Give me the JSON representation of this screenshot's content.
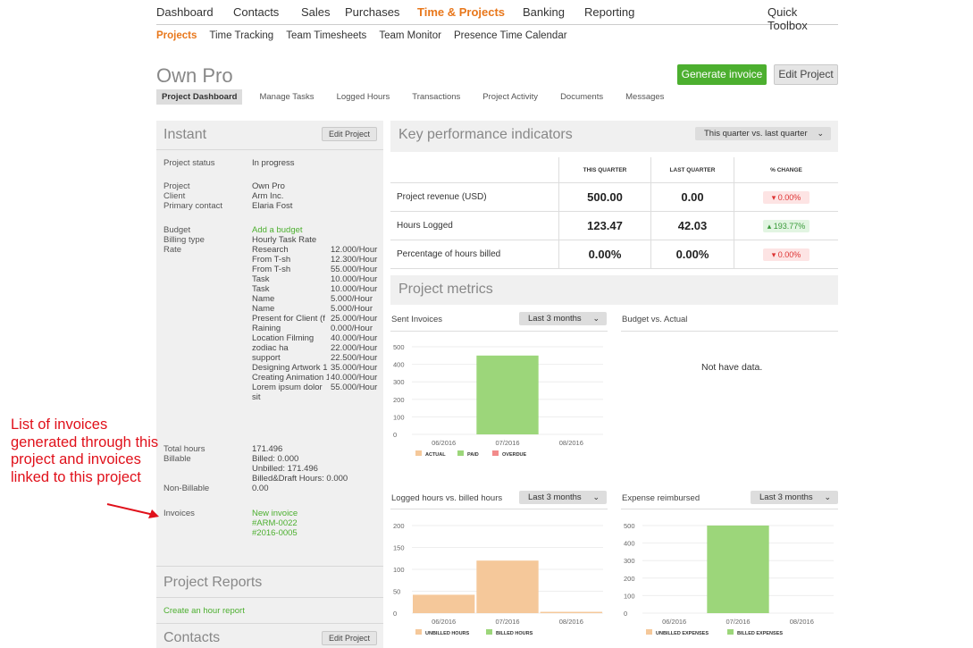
{
  "top_nav": [
    "Dashboard",
    "Contacts",
    "Sales",
    "Purchases",
    "Time & Projects",
    "Banking",
    "Reporting"
  ],
  "quick_toolbox": "Quick Toolbox",
  "sub_nav": [
    "Projects",
    "Time Tracking",
    "Team Timesheets",
    "Team Monitor",
    "Presence Time Calendar"
  ],
  "project_name": "Own Pro",
  "generate_invoice": "Generate invoice",
  "edit_project": "Edit Project",
  "tabs": [
    "Project Dashboard",
    "Manage Tasks",
    "Logged Hours",
    "Transactions",
    "Project Activity",
    "Documents",
    "Messages"
  ],
  "instant": {
    "title": "Instant",
    "edit": "Edit Project",
    "status_label": "Project status",
    "status": "In progress",
    "project_label": "Project",
    "project": "Own Pro",
    "client_label": "Client",
    "client": "Arm Inc.",
    "contact_label": "Primary contact",
    "contact": "Elaria Fost",
    "budget_label": "Budget",
    "budget": "Add a budget",
    "billing_label": "Billing type",
    "billing": "Hourly Task Rate",
    "rate_label": "Rate",
    "rates": [
      {
        "name": "Research",
        "rate": "12.000/Hour"
      },
      {
        "name": "From T-sh",
        "rate": "12.300/Hour"
      },
      {
        "name": "From T-sh",
        "rate": "55.000/Hour"
      },
      {
        "name": "Task",
        "rate": "10.000/Hour"
      },
      {
        "name": "Task",
        "rate": "10.000/Hour"
      },
      {
        "name": "Name",
        "rate": "5.000/Hour"
      },
      {
        "name": "Name",
        "rate": "5.000/Hour"
      },
      {
        "name": "Present for Client (f",
        "rate": "25.000/Hour"
      },
      {
        "name": "Raining",
        "rate": "0.000/Hour"
      },
      {
        "name": "Location Filming",
        "rate": "40.000/Hour"
      },
      {
        "name": "zodiac ha",
        "rate": "22.000/Hour"
      },
      {
        "name": "support",
        "rate": "22.500/Hour"
      },
      {
        "name": "Designing Artwork 1",
        "rate": "35.000/Hour"
      },
      {
        "name": "Creating Animation 1",
        "rate": "40.000/Hour"
      },
      {
        "name": "Lorem ipsum dolor",
        "rate": "55.000/Hour"
      },
      {
        "name": "sit",
        "rate": ""
      }
    ],
    "total_hours_label": "Total hours",
    "total_hours": "171.496",
    "billable_label": "Billable",
    "billed": "Billed: 0.000",
    "unbilled": "Unbilled: 171.496",
    "billed_draft": "Billed&Draft Hours: 0.000",
    "non_billable_label": "Non-Billable",
    "non_billable": "0.00",
    "invoices_label": "Invoices",
    "new_invoice": "New invoice",
    "invoices": [
      "#ARM-0022",
      "#2016-0005"
    ]
  },
  "project_reports": {
    "title": "Project Reports",
    "link": "Create an hour report"
  },
  "contacts": {
    "title": "Contacts",
    "edit": "Edit Project"
  },
  "kpi": {
    "title": "Key performance indicators",
    "period": "This quarter vs. last quarter",
    "headers": [
      "This quarter",
      "Last quarter",
      "% Change"
    ],
    "rows": [
      {
        "label": "Project revenue (USD)",
        "this": "500.00",
        "last": "0.00",
        "change": "0.00%",
        "dir": "down"
      },
      {
        "label": "Hours Logged",
        "this": "123.47",
        "last": "42.03",
        "change": "193.77%",
        "dir": "up"
      },
      {
        "label": "Percentage of hours billed",
        "this": "0.00%",
        "last": "0.00%",
        "change": "0.00%",
        "dir": "down"
      }
    ]
  },
  "metrics": {
    "title": "Project metrics",
    "sent_invoices": "Sent Invoices",
    "budget_vs_actual": "Budget vs. Actual",
    "no_data": "Not have data.",
    "logged_vs_billed": "Logged hours vs. billed hours",
    "expense_reimbursed": "Expense reimbursed",
    "range": "Last 3 months"
  },
  "annotation": "List of invoices generated through this project and invoices linked to this project",
  "colors": {
    "accent": "#e8771b",
    "green": "#4caf2f",
    "actual": "#f5c89a",
    "paid": "#9cd67a",
    "overdue": "#f28b8b",
    "red": "#e0101a"
  },
  "chart_data": [
    {
      "type": "bar",
      "title": "Sent Invoices",
      "categories": [
        "06/2016",
        "07/2016",
        "08/2016"
      ],
      "series": [
        {
          "name": "ACTUAL",
          "values": [
            0,
            0,
            0
          ]
        },
        {
          "name": "PAID",
          "values": [
            0,
            450,
            0
          ]
        },
        {
          "name": "OVERDUE",
          "values": [
            0,
            0,
            0
          ]
        }
      ],
      "ylim": [
        0,
        500
      ],
      "yticks": [
        0,
        100,
        200,
        300,
        400,
        500
      ]
    },
    {
      "type": "bar",
      "title": "Logged hours vs. billed hours",
      "categories": [
        "06/2016",
        "07/2016",
        "08/2016"
      ],
      "series": [
        {
          "name": "UNBILLED HOURS",
          "values": [
            42,
            120,
            3
          ]
        },
        {
          "name": "BILLED HOURS",
          "values": [
            0,
            0,
            0
          ]
        }
      ],
      "ylim": [
        0,
        200
      ],
      "yticks": [
        0,
        50,
        100,
        150,
        200
      ]
    },
    {
      "type": "bar",
      "title": "Expense reimbursed",
      "categories": [
        "06/2016",
        "07/2016",
        "08/2016"
      ],
      "series": [
        {
          "name": "UNBILLED EXPENSES",
          "values": [
            0,
            0,
            0
          ]
        },
        {
          "name": "BILLED EXPENSES",
          "values": [
            0,
            500,
            0
          ]
        }
      ],
      "ylim": [
        0,
        500
      ],
      "yticks": [
        0,
        100,
        200,
        300,
        400,
        500
      ]
    }
  ]
}
